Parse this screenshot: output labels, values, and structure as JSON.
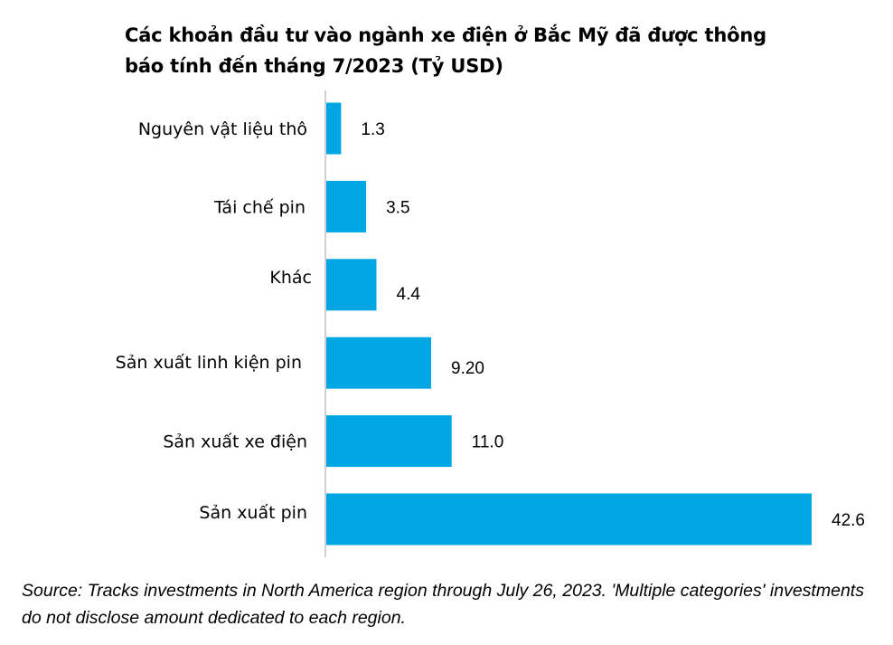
{
  "chart_data": {
    "type": "bar",
    "orientation": "horizontal",
    "title": "Các khoản đầu tư vào ngành xe điện ở Bắc Mỹ đã được thông báo tính đến tháng 7/2023 (Tỷ USD)",
    "categories": [
      "Nguyên vật liệu thô",
      "Tái chế pin",
      "Khác",
      "Sản xuất linh kiện pin",
      "Sản xuất xe điện",
      "Sản xuất pin"
    ],
    "values": [
      1.3,
      3.5,
      4.4,
      9.2,
      11.0,
      42.6
    ],
    "value_labels": [
      "1.3",
      "3.5",
      "4.4",
      "9.20",
      "11.0",
      "42.6"
    ],
    "xlim": [
      0,
      42.6
    ],
    "bar_color": "#00A5E3",
    "axis_color": "#BFBFBF",
    "grid": false,
    "legend": "none"
  },
  "source_note": "Source: Tracks investments in North America region through July 26, 2023. 'Multiple categories' investments do not disclose amount dedicated to each region."
}
